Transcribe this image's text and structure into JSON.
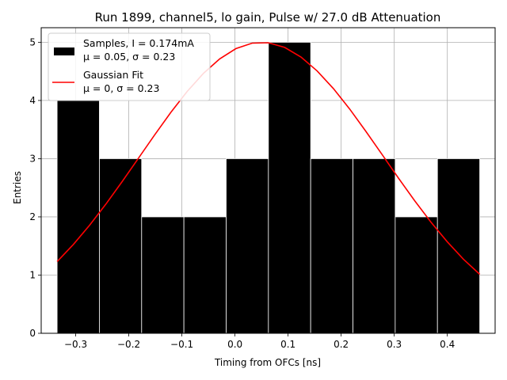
{
  "chart_data": {
    "type": "bar",
    "title": "Run 1899, channel5, lo gain, Pulse w/ 27.0 dB Attenuation",
    "xlabel": "Timing from OFCs [ns]",
    "ylabel": "Entries",
    "xlim": [
      -0.365,
      0.49
    ],
    "ylim": [
      0,
      5.25
    ],
    "grid": true,
    "xticks": [
      -0.3,
      -0.2,
      -0.1,
      0.0,
      0.1,
      0.2,
      0.3,
      0.4
    ],
    "xtick_labels": [
      "−0.3",
      "−0.2",
      "−0.1",
      "0.0",
      "0.1",
      "0.2",
      "0.3",
      "0.4"
    ],
    "yticks": [
      0,
      1,
      2,
      3,
      4,
      5
    ],
    "ytick_labels": [
      "0",
      "1",
      "2",
      "3",
      "4",
      "5"
    ],
    "histogram": {
      "name": "Samples",
      "color": "#000000",
      "bin_edges": [
        -0.335,
        -0.2554,
        -0.1758,
        -0.0962,
        -0.0166,
        0.063,
        0.1426,
        0.2222,
        0.3018,
        0.3814,
        0.461
      ],
      "counts": [
        4,
        3,
        2,
        2,
        3,
        5,
        3,
        3,
        2,
        3
      ]
    },
    "fit": {
      "name": "Gaussian Fit",
      "color": "#ff0000",
      "amplitude": 5,
      "mean": 0.05,
      "sigma": 0.23,
      "x_range": [
        -0.335,
        0.461
      ]
    },
    "legend": {
      "position": "top-left",
      "entries": [
        {
          "line1": "Samples, I = 0.174mA",
          "line2": "μ = 0.05, σ = 0.23"
        },
        {
          "line1": "Gaussian Fit",
          "line2": "μ = 0, σ = 0.23"
        }
      ]
    }
  }
}
